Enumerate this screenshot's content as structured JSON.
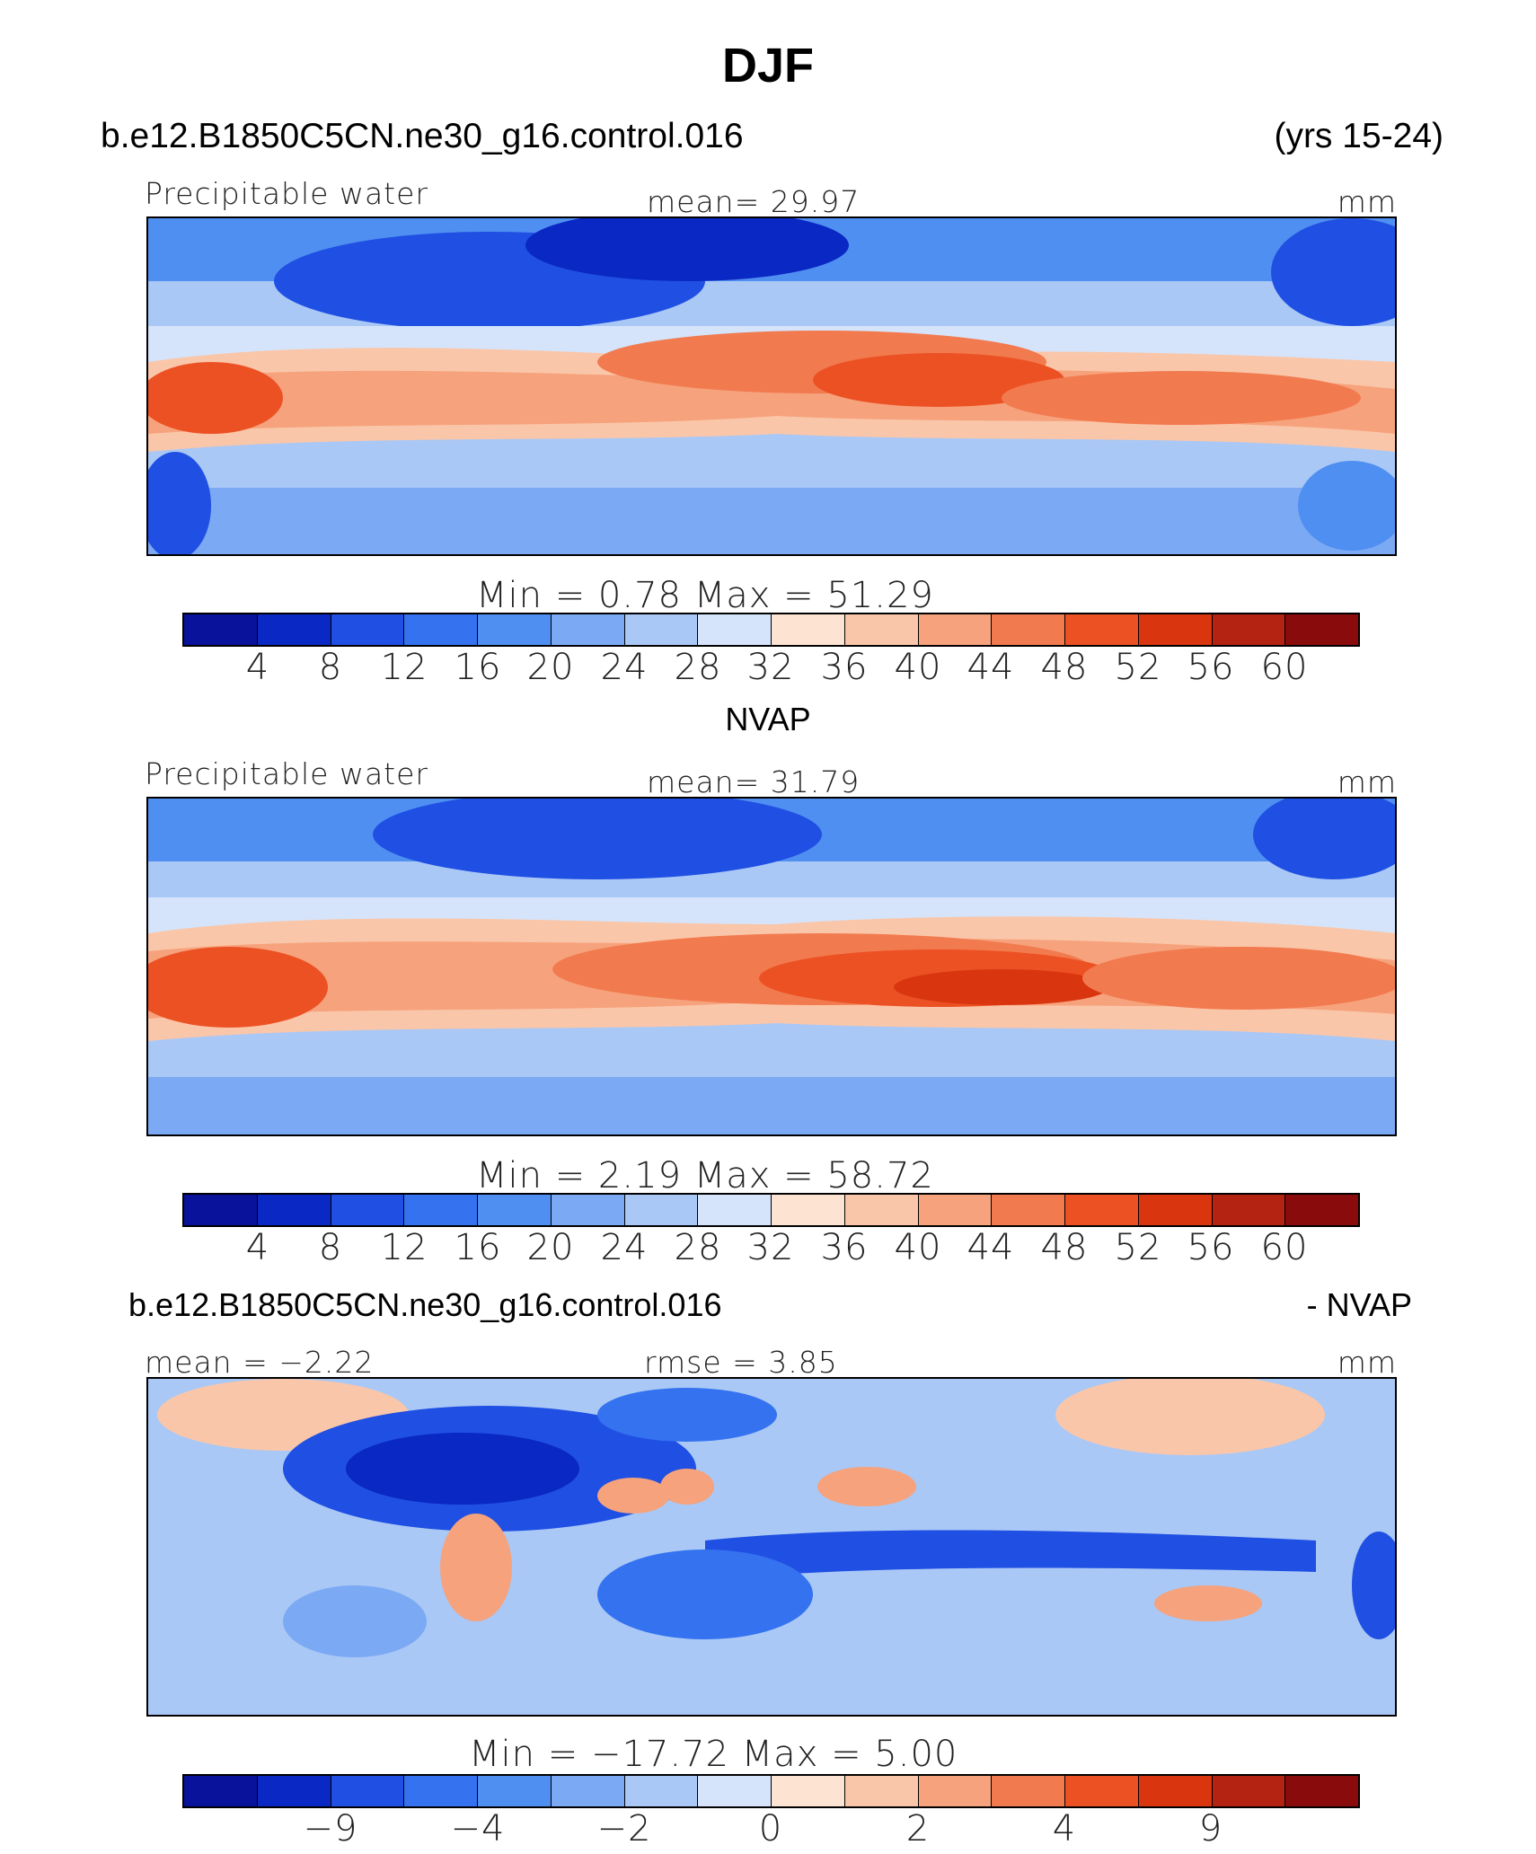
{
  "title": "DJF",
  "case_name": "b.e12.B1850C5CN.ne30_g16.control.016",
  "years": "(yrs 15-24)",
  "obs_name": "NVAP",
  "diff_suffix": "- NVAP",
  "colors": [
    "#08129a",
    "#0a28c3",
    "#1f4fe3",
    "#3472f0",
    "#4f8ff1",
    "#7ba9f3",
    "#a9c8f6",
    "#d5e4fa",
    "#fde3d2",
    "#fac6a9",
    "#f6a27c",
    "#f27a4f",
    "#ec5124",
    "#d93610",
    "#b42311",
    "#8a0b0b"
  ],
  "panels": [
    {
      "variable": "Precipitable water",
      "mean_text": "mean=   29.97",
      "units": "mm",
      "minmax_text": "Min  =     0.78  Max  =    51.29",
      "colorbar_ticks": [
        "4",
        "8",
        "12",
        "16",
        "20",
        "24",
        "28",
        "32",
        "36",
        "40",
        "44",
        "48",
        "52",
        "56",
        "60"
      ]
    },
    {
      "variable": "Precipitable water",
      "mean_text": "mean=   31.79",
      "units": "mm",
      "minmax_text": "Min  =     2.19  Max  =    58.72",
      "colorbar_ticks": [
        "4",
        "8",
        "12",
        "16",
        "20",
        "24",
        "28",
        "32",
        "36",
        "40",
        "44",
        "48",
        "52",
        "56",
        "60"
      ]
    },
    {
      "mean_text": "mean  =   −2.22",
      "rmse_text": "rmse  =      3.85",
      "units": "mm",
      "minmax_text": "Min  =  −17.72  Max  =      5.00",
      "colorbar_ticks": [
        "",
        "−9",
        "",
        "−4",
        "",
        "−2",
        "",
        "0",
        "",
        "2",
        "",
        "4",
        "",
        "9",
        ""
      ]
    }
  ]
}
